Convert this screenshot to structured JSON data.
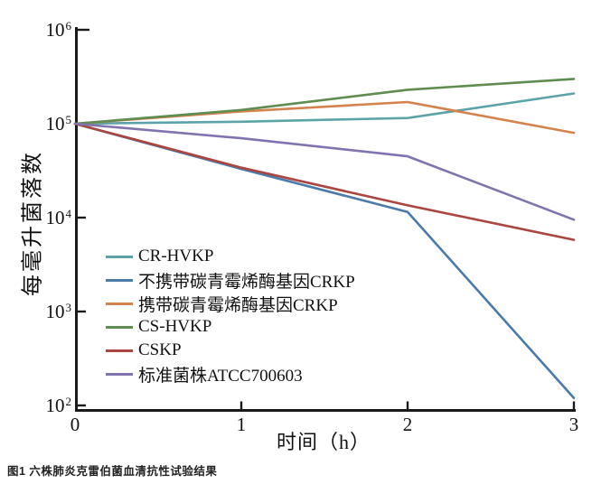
{
  "figure": {
    "caption": "图1 六株肺炎克雷伯菌血清抗性试验结果"
  },
  "chart_data": {
    "type": "line",
    "title": "",
    "xlabel": "时间（h）",
    "ylabel": "每毫升菌落数",
    "x": [
      0,
      1,
      2,
      3
    ],
    "x_ticks": [
      "0",
      "1",
      "2",
      "3"
    ],
    "xlim": [
      0,
      3
    ],
    "y_scale": "log",
    "ylim": [
      100,
      1000000
    ],
    "y_tick_exponents": [
      2,
      3,
      4,
      5,
      6
    ],
    "grid": false,
    "legend_position": "inside-lower-left",
    "axis_color": "#1a1a1a",
    "series": [
      {
        "name": "CR-HVKP",
        "color": "#5ca3a9",
        "values": [
          100000,
          105000,
          115000,
          210000
        ]
      },
      {
        "name": "不携带碳青霉烯酶基因CRKP",
        "color": "#4a7aa9",
        "values": [
          100000,
          33000,
          11500,
          120
        ]
      },
      {
        "name": "携带碳青霉烯酶基因CRKP",
        "color": "#d5834e",
        "values": [
          100000,
          135000,
          170000,
          80000
        ]
      },
      {
        "name": "CS-HVKP",
        "color": "#5f8c50",
        "values": [
          100000,
          140000,
          230000,
          300000
        ]
      },
      {
        "name": "CSKP",
        "color": "#ab4540",
        "values": [
          100000,
          34000,
          13500,
          5800
        ]
      },
      {
        "name": "标准菌株ATCC700603",
        "color": "#8174ae",
        "values": [
          100000,
          70000,
          45000,
          9500
        ]
      }
    ]
  }
}
